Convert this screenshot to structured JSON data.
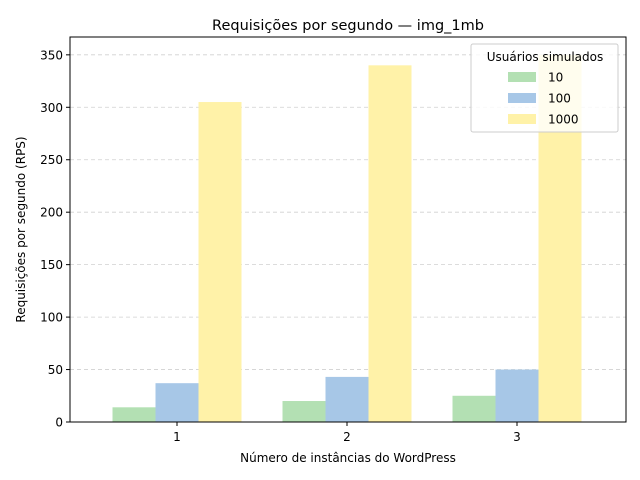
{
  "chart_data": {
    "type": "bar",
    "title": "Requisições por segundo — img_1mb",
    "xlabel": "Número de instâncias do WordPress",
    "ylabel": "Requisições por segundo (RPS)",
    "categories": [
      "1",
      "2",
      "3"
    ],
    "ylim": [
      0,
      367
    ],
    "yticks": [
      0,
      50,
      100,
      150,
      200,
      250,
      300,
      350
    ],
    "grid": true,
    "legend": {
      "title": "Usuários simulados",
      "placement": "top-right"
    },
    "series": [
      {
        "name": "10",
        "color": "#b3e0b3",
        "values": [
          14,
          20,
          25
        ]
      },
      {
        "name": "100",
        "color": "#a7c7e7",
        "values": [
          37,
          43,
          50
        ]
      },
      {
        "name": "1000",
        "color": "#fff2a8",
        "values": [
          305,
          340,
          350
        ]
      }
    ]
  }
}
